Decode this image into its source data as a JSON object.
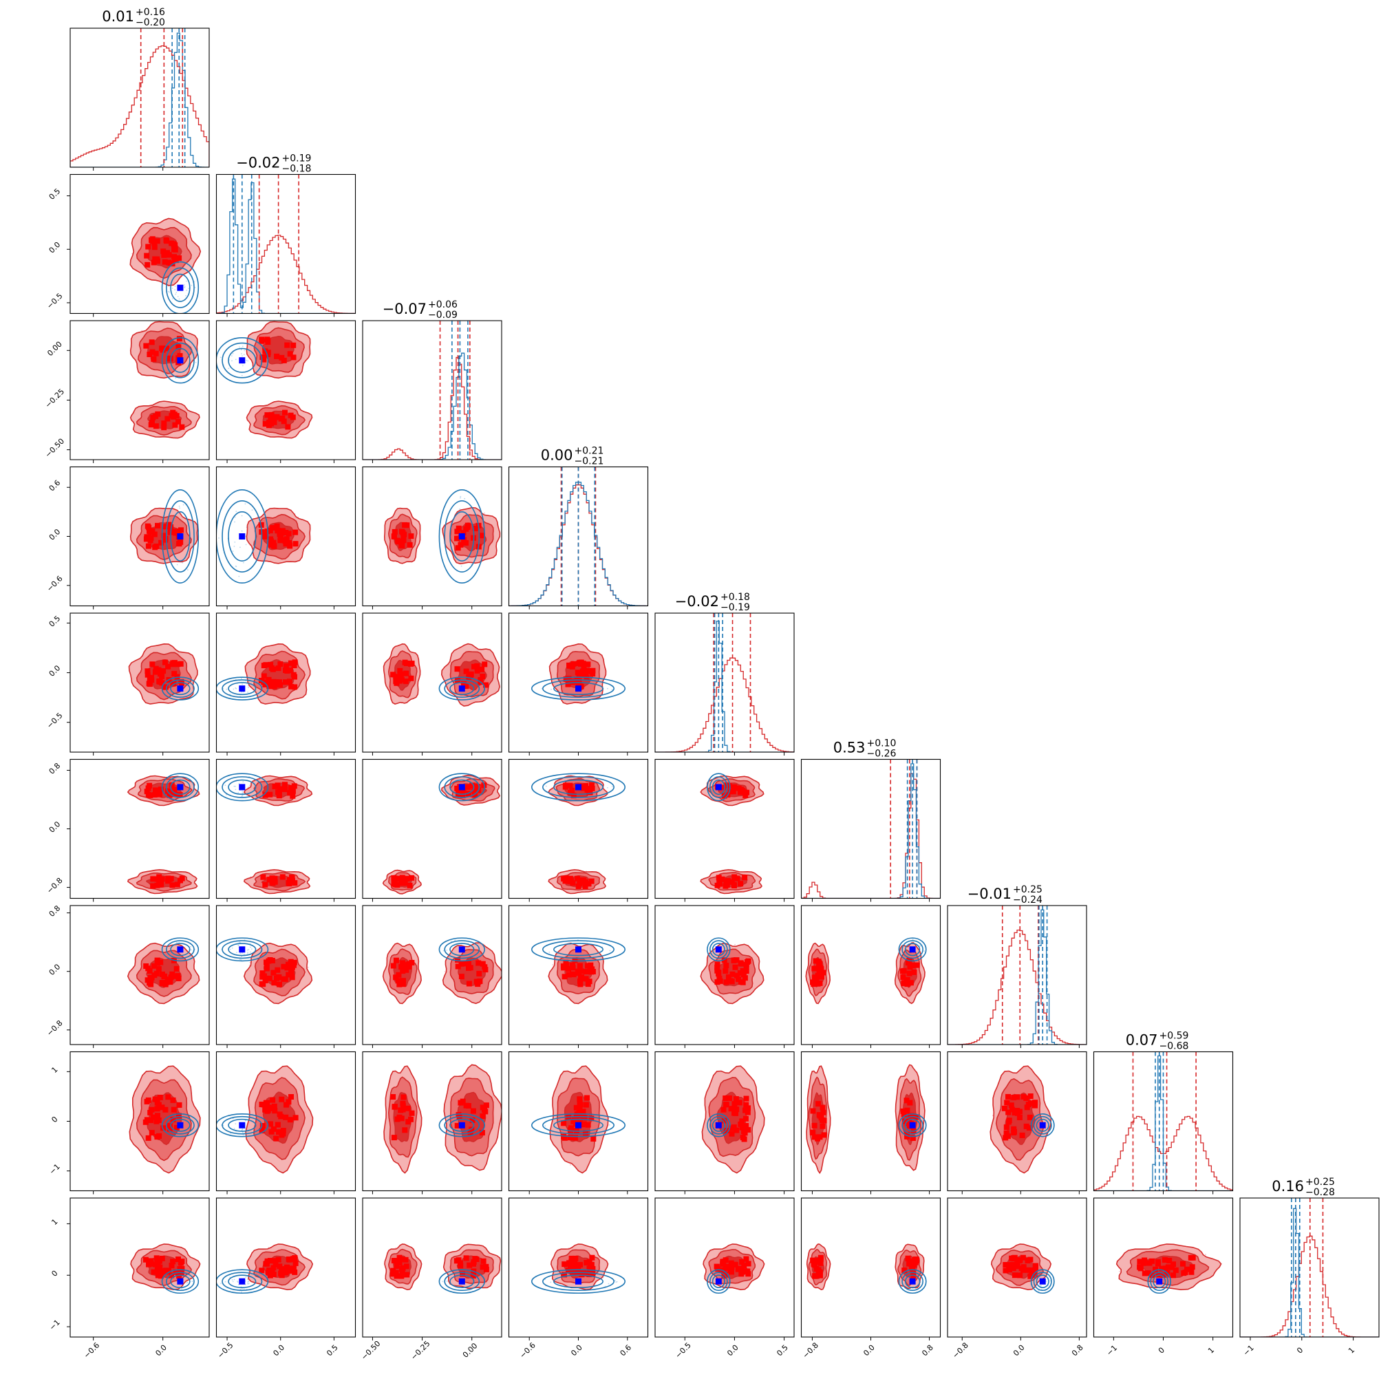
{
  "chart_data": {
    "type": "corner",
    "n_params": 9,
    "colors": {
      "posterior_red": "#d62728",
      "contour_red": "#d42a2a",
      "fill_red_outer": "#f5b3b3",
      "fill_red_mid": "#ea7070",
      "fill_red_inner": "#dc3030",
      "marker_red": "#ff0000",
      "contour_blue": "#1f77b4",
      "truth_marker": "#0000ff"
    },
    "titles": [
      {
        "median": "0.01",
        "plus": "+0.16",
        "minus": "−0.20"
      },
      {
        "median": "−0.02",
        "plus": "+0.19",
        "minus": "−0.18"
      },
      {
        "median": "−0.07",
        "plus": "+0.06",
        "minus": "−0.09"
      },
      {
        "median": "0.00",
        "plus": "+0.21",
        "minus": "−0.21"
      },
      {
        "median": "−0.02",
        "plus": "+0.18",
        "minus": "−0.19"
      },
      {
        "median": "0.53",
        "plus": "+0.10",
        "minus": "−0.26"
      },
      {
        "median": "−0.01",
        "plus": "+0.25",
        "minus": "−0.24"
      },
      {
        "median": "0.07",
        "plus": "+0.59",
        "minus": "−0.68"
      },
      {
        "median": "0.16",
        "plus": "+0.25",
        "minus": "−0.28"
      }
    ],
    "params": [
      {
        "range": [
          -0.8,
          0.4
        ],
        "ticks": [
          -0.6,
          0.0
        ],
        "tick_labels": [
          "−0.6",
          "0.0"
        ],
        "truth": 0.15,
        "red_q": [
          -0.19,
          0.01,
          0.17
        ],
        "blue_q": [
          0.08,
          0.14,
          0.19
        ],
        "red_hist": [
          [
            -0.6,
            0.15,
            0.1
          ],
          [
            0.0,
            0.22,
            0.9
          ]
        ],
        "blue_hist": [
          [
            0.14,
            0.05,
            1.0
          ]
        ]
      },
      {
        "range": [
          -0.6,
          0.7
        ],
        "ticks": [
          -0.5,
          0.0,
          0.5
        ],
        "tick_labels": [
          "−0.5",
          "0.0",
          "0.5"
        ],
        "truth": -0.36,
        "red_q": [
          -0.2,
          -0.02,
          0.17
        ],
        "blue_q": [
          -0.44,
          -0.36,
          -0.27
        ],
        "red_hist": [
          [
            -0.02,
            0.18,
            0.58
          ]
        ],
        "blue_hist": [
          [
            -0.44,
            0.03,
            1.0
          ],
          [
            -0.27,
            0.03,
            1.0
          ]
        ]
      },
      {
        "range": [
          -0.55,
          0.15
        ],
        "ticks": [
          -0.5,
          -0.25,
          0.0
        ],
        "tick_labels": [
          "−0.50",
          "−0.25",
          "0.00"
        ],
        "truth": -0.05,
        "red_q": [
          -0.16,
          -0.07,
          -0.01
        ],
        "blue_q": [
          -0.1,
          -0.06,
          -0.02
        ],
        "red_hist": [
          [
            -0.37,
            0.03,
            0.08
          ],
          [
            -0.07,
            0.03,
            0.76
          ]
        ],
        "blue_hist": [
          [
            -0.05,
            0.03,
            0.8
          ]
        ]
      },
      {
        "range": [
          -0.85,
          0.85
        ],
        "ticks": [
          -0.6,
          0.0,
          0.6
        ],
        "tick_labels": [
          "−0.6",
          "0.0",
          "0.6"
        ],
        "truth": 0.0,
        "red_q": [
          -0.21,
          0.0,
          0.21
        ],
        "blue_q": [
          -0.2,
          0.0,
          0.2
        ],
        "red_hist": [
          [
            0.0,
            0.2,
            0.9
          ]
        ],
        "blue_hist": [
          [
            0.0,
            0.2,
            0.92
          ]
        ]
      },
      {
        "range": [
          -0.8,
          0.6
        ],
        "ticks": [
          -0.5,
          0.0,
          0.5
        ],
        "tick_labels": [
          "−0.5",
          "0.0",
          "0.5"
        ],
        "truth": -0.16,
        "red_q": [
          -0.21,
          -0.02,
          0.16
        ],
        "blue_q": [
          -0.2,
          -0.16,
          -0.12
        ],
        "red_hist": [
          [
            -0.02,
            0.17,
            0.7
          ]
        ],
        "blue_hist": [
          [
            -0.16,
            0.03,
            1.0
          ]
        ]
      },
      {
        "range": [
          -0.95,
          0.95
        ],
        "ticks": [
          -0.8,
          0.0,
          0.8
        ],
        "tick_labels": [
          "−0.8",
          "0.0",
          "0.8"
        ],
        "truth": 0.57,
        "red_q": [
          0.27,
          0.53,
          0.63
        ],
        "blue_q": [
          0.5,
          0.57,
          0.63
        ],
        "red_hist": [
          [
            -0.78,
            0.05,
            0.12
          ],
          [
            0.58,
            0.06,
            0.95
          ]
        ],
        "blue_hist": [
          [
            0.57,
            0.05,
            1.0
          ]
        ]
      },
      {
        "range": [
          -1.0,
          0.9
        ],
        "ticks": [
          -0.8,
          0.0,
          0.8
        ],
        "tick_labels": [
          "−0.8",
          "0.0",
          "0.8"
        ],
        "truth": 0.3,
        "red_q": [
          -0.25,
          -0.01,
          0.24
        ],
        "blue_q": [
          0.25,
          0.3,
          0.36
        ],
        "red_hist": [
          [
            -0.02,
            0.22,
            0.85
          ]
        ],
        "blue_hist": [
          [
            0.3,
            0.05,
            1.0
          ]
        ]
      },
      {
        "range": [
          -1.4,
          1.4
        ],
        "ticks": [
          -1,
          0,
          1
        ],
        "tick_labels": [
          "−1",
          "0",
          "1"
        ],
        "truth": -0.08,
        "red_q": [
          -0.61,
          0.07,
          0.66
        ],
        "blue_q": [
          -0.16,
          -0.08,
          0.0
        ],
        "red_hist": [
          [
            -0.5,
            0.3,
            0.55
          ],
          [
            0.5,
            0.3,
            0.55
          ]
        ],
        "blue_hist": [
          [
            -0.08,
            0.06,
            1.0
          ]
        ]
      },
      {
        "range": [
          -1.2,
          1.5
        ],
        "ticks": [
          -1,
          0,
          1
        ],
        "tick_labels": [
          "−1",
          "0",
          "1"
        ],
        "truth": -0.12,
        "red_q": [
          -0.12,
          0.16,
          0.41
        ],
        "blue_q": [
          -0.2,
          -0.12,
          -0.04
        ],
        "red_hist": [
          [
            0.16,
            0.24,
            0.75
          ]
        ],
        "blue_hist": [
          [
            -0.12,
            0.05,
            1.0
          ]
        ]
      }
    ]
  }
}
